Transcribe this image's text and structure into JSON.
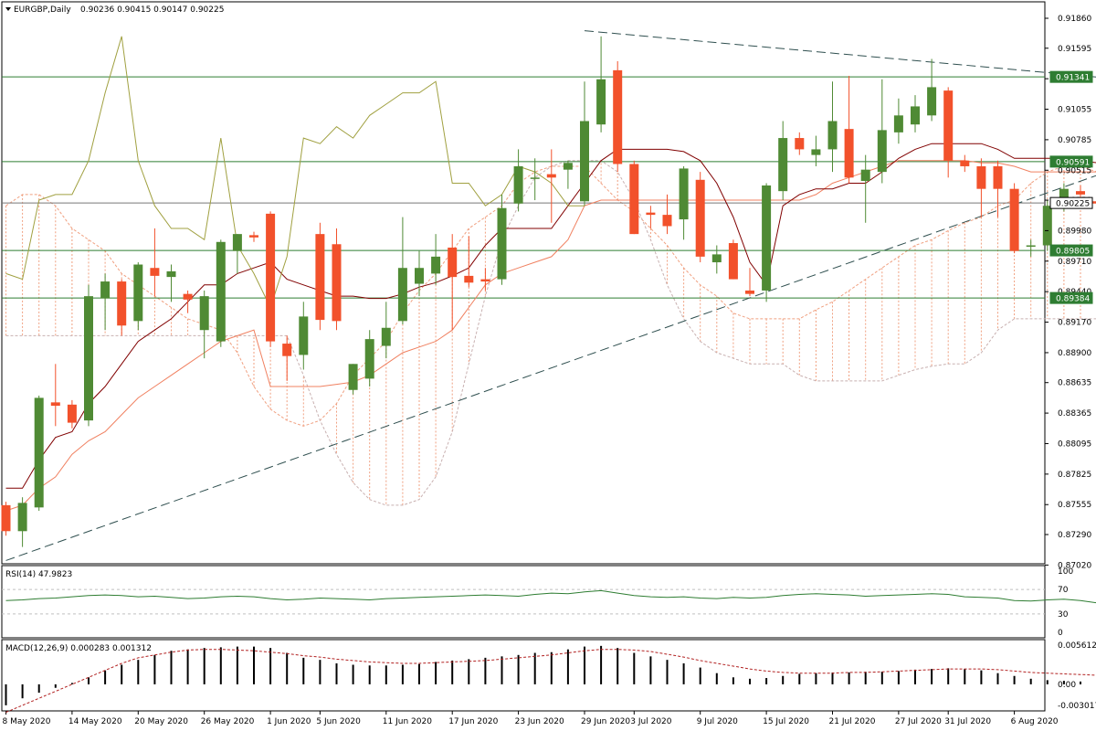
{
  "header": {
    "symbol": "EURGBP,Daily",
    "ohlc": "0.90236 0.90415 0.90147 0.90225"
  },
  "rsi": {
    "label": "RSI(14) 47.9823",
    "ticks": [
      "100",
      "70",
      "30",
      "0"
    ],
    "levels": [
      70,
      30
    ]
  },
  "macd": {
    "label": "MACD(12,26,9) 0.000283 0.001312",
    "ticks": [
      "0.005612",
      "0.00",
      "-0.003017"
    ]
  },
  "colors": {
    "bull": "#4f8a34",
    "bear": "#f2512b",
    "tenkan": "#800000",
    "kijun": "#f08060",
    "chikou": "#a0a040",
    "cloud": "#f0a080",
    "trend": "#2f4f4f",
    "level": "#2e7d32",
    "label_bg": "#2e7d32",
    "current_bg": "#ffffff",
    "rsi_line": "#2e7d32",
    "signal": "#b22222"
  },
  "chart_data": {
    "type": "candlestick",
    "symbol": "EURGBP",
    "timeframe": "Daily",
    "y_ticks": [
      "0.91860",
      "0.91595",
      "0.91325",
      "0.91055",
      "0.90785",
      "0.90515",
      "0.90250",
      "0.89980",
      "0.89710",
      "0.89440",
      "0.89170",
      "0.88900",
      "0.88635",
      "0.88365",
      "0.88095",
      "0.87825",
      "0.87555",
      "0.87290",
      "0.87020"
    ],
    "ylim": [
      0.8702,
      0.9203
    ],
    "x_ticks": [
      "8 May 2020",
      "14 May 2020",
      "20 May 2020",
      "26 May 2020",
      "1 Jun 2020",
      "5 Jun 2020",
      "11 Jun 2020",
      "17 Jun 2020",
      "23 Jun 2020",
      "29 Jun 2020",
      "3 Jul 2020",
      "9 Jul 2020",
      "15 Jul 2020",
      "21 Jul 2020",
      "27 Jul 2020",
      "31 Jul 2020",
      "6 Aug 2020"
    ],
    "x_tick_index": [
      0,
      4,
      8,
      12,
      16,
      19,
      23,
      27,
      31,
      35,
      38,
      42,
      46,
      50,
      54,
      57,
      61
    ],
    "h_levels": [
      {
        "value": "0.91341",
        "price": 0.91341
      },
      {
        "value": "0.90591",
        "price": 0.90591
      },
      {
        "value": "0.90225",
        "price": 0.90225,
        "current": true
      },
      {
        "value": "0.89805",
        "price": 0.89805
      },
      {
        "value": "0.89384",
        "price": 0.89384
      }
    ],
    "candles": [
      [
        0.8755,
        0.8758,
        0.8728,
        0.8732
      ],
      [
        0.8732,
        0.8762,
        0.8718,
        0.8757
      ],
      [
        0.8753,
        0.8852,
        0.875,
        0.885
      ],
      [
        0.8846,
        0.888,
        0.8825,
        0.8843
      ],
      [
        0.8844,
        0.8848,
        0.8823,
        0.8828
      ],
      [
        0.883,
        0.895,
        0.8825,
        0.894
      ],
      [
        0.8938,
        0.896,
        0.891,
        0.8953
      ],
      [
        0.8953,
        0.8955,
        0.8905,
        0.8914
      ],
      [
        0.8918,
        0.897,
        0.891,
        0.8968
      ],
      [
        0.8965,
        0.9,
        0.894,
        0.8958
      ],
      [
        0.8957,
        0.8968,
        0.8935,
        0.8962
      ],
      [
        0.8942,
        0.8945,
        0.8925,
        0.8937
      ],
      [
        0.891,
        0.8945,
        0.8885,
        0.894
      ],
      [
        0.89,
        0.899,
        0.8895,
        0.8988
      ],
      [
        0.898,
        0.8995,
        0.896,
        0.8995
      ],
      [
        0.8994,
        0.8997,
        0.8988,
        0.8992
      ],
      [
        0.9013,
        0.9015,
        0.8895,
        0.89
      ],
      [
        0.8898,
        0.8905,
        0.8865,
        0.8887
      ],
      [
        0.8888,
        0.8935,
        0.8875,
        0.8922
      ],
      [
        0.8995,
        0.9005,
        0.891,
        0.8919
      ],
      [
        0.8986,
        0.9,
        0.891,
        0.8918
      ],
      [
        0.8857,
        0.888,
        0.8853,
        0.888
      ],
      [
        0.8867,
        0.891,
        0.886,
        0.8902
      ],
      [
        0.8896,
        0.8935,
        0.8885,
        0.8912
      ],
      [
        0.8918,
        0.901,
        0.8915,
        0.8965
      ],
      [
        0.8951,
        0.898,
        0.894,
        0.8965
      ],
      [
        0.896,
        0.8995,
        0.895,
        0.8975
      ],
      [
        0.8983,
        0.8995,
        0.891,
        0.8957
      ],
      [
        0.8958,
        0.8993,
        0.8948,
        0.8952
      ],
      [
        0.8955,
        0.8965,
        0.8945,
        0.8953
      ],
      [
        0.8955,
        0.903,
        0.895,
        0.9018
      ],
      [
        0.9022,
        0.907,
        0.9015,
        0.9055
      ],
      [
        0.9045,
        0.9062,
        0.9025,
        0.9045
      ],
      [
        0.9048,
        0.907,
        0.9005,
        0.9045
      ],
      [
        0.9052,
        0.906,
        0.9035,
        0.9058
      ],
      [
        0.9024,
        0.913,
        0.902,
        0.9095
      ],
      [
        0.9092,
        0.917,
        0.9085,
        0.9132
      ],
      [
        0.914,
        0.9148,
        0.905,
        0.9057
      ],
      [
        0.9057,
        0.906,
        0.8995,
        0.8995
      ],
      [
        0.9014,
        0.902,
        0.9,
        0.9012
      ],
      [
        0.9012,
        0.903,
        0.8995,
        0.9002
      ],
      [
        0.9008,
        0.9055,
        0.899,
        0.9053
      ],
      [
        0.9043,
        0.905,
        0.897,
        0.8975
      ],
      [
        0.897,
        0.8985,
        0.896,
        0.8977
      ],
      [
        0.8987,
        0.899,
        0.8955,
        0.8955
      ],
      [
        0.8945,
        0.8965,
        0.894,
        0.8942
      ],
      [
        0.8945,
        0.904,
        0.8935,
        0.9038
      ],
      [
        0.9033,
        0.9095,
        0.9025,
        0.908
      ],
      [
        0.908,
        0.9085,
        0.9065,
        0.907
      ],
      [
        0.9065,
        0.9082,
        0.9055,
        0.907
      ],
      [
        0.907,
        0.913,
        0.905,
        0.9095
      ],
      [
        0.9088,
        0.9135,
        0.904,
        0.9045
      ],
      [
        0.9042,
        0.9065,
        0.9005,
        0.9052
      ],
      [
        0.905,
        0.9132,
        0.904,
        0.9087
      ],
      [
        0.9085,
        0.9115,
        0.9075,
        0.91
      ],
      [
        0.9092,
        0.9118,
        0.9085,
        0.9108
      ],
      [
        0.91,
        0.915,
        0.9095,
        0.9125
      ],
      [
        0.9122,
        0.9125,
        0.9045,
        0.906
      ],
      [
        0.906,
        0.9065,
        0.905,
        0.9055
      ],
      [
        0.9055,
        0.9062,
        0.901,
        0.9035
      ],
      [
        0.9055,
        0.906,
        0.901,
        0.9035
      ],
      [
        0.9035,
        0.904,
        0.8978,
        0.898
      ],
      [
        0.8985,
        0.899,
        0.8975,
        0.8985
      ],
      [
        0.8985,
        0.9025,
        0.898,
        0.902
      ],
      [
        0.902,
        0.904,
        0.9015,
        0.9035
      ],
      [
        0.9033,
        0.9038,
        0.9028,
        0.903
      ],
      [
        0.9024,
        0.9042,
        0.9015,
        0.9022
      ]
    ],
    "tenkan": [
      0.877,
      0.877,
      0.8795,
      0.8815,
      0.882,
      0.8845,
      0.886,
      0.888,
      0.89,
      0.891,
      0.892,
      0.8935,
      0.895,
      0.895,
      0.896,
      0.8965,
      0.897,
      0.8955,
      0.895,
      0.8945,
      0.894,
      0.894,
      0.8938,
      0.8938,
      0.8942,
      0.8948,
      0.8952,
      0.8958,
      0.8965,
      0.8985,
      0.9,
      0.9,
      0.9,
      0.9,
      0.902,
      0.904,
      0.906,
      0.907,
      0.907,
      0.907,
      0.907,
      0.9068,
      0.906,
      0.904,
      0.901,
      0.897,
      0.895,
      0.902,
      0.903,
      0.9035,
      0.9035,
      0.904,
      0.904,
      0.905,
      0.9062,
      0.907,
      0.9075,
      0.9075,
      0.9075,
      0.9075,
      0.907,
      0.9062,
      0.9062,
      0.9062,
      0.9062,
      0.906,
      0.9058
    ],
    "kijun": [
      0.875,
      0.8755,
      0.877,
      0.878,
      0.88,
      0.8812,
      0.882,
      0.8835,
      0.885,
      0.886,
      0.887,
      0.888,
      0.889,
      0.89,
      0.8905,
      0.891,
      0.886,
      0.886,
      0.886,
      0.886,
      0.8862,
      0.8864,
      0.887,
      0.888,
      0.889,
      0.8895,
      0.89,
      0.891,
      0.893,
      0.895,
      0.896,
      0.8965,
      0.897,
      0.8975,
      0.899,
      0.902,
      0.9025,
      0.9025,
      0.9025,
      0.9025,
      0.9025,
      0.9025,
      0.9025,
      0.9025,
      0.9025,
      0.9025,
      0.9025,
      0.9025,
      0.9025,
      0.903,
      0.904,
      0.9045,
      0.905,
      0.9055,
      0.906,
      0.906,
      0.906,
      0.906,
      0.906,
      0.9058,
      0.9058,
      0.9055,
      0.905,
      0.905,
      0.905,
      0.905,
      0.905
    ],
    "chikou": [
      0.896,
      0.8955,
      0.9025,
      0.903,
      0.903,
      0.906,
      0.912,
      0.917,
      0.906,
      0.902,
      0.9,
      0.9,
      0.899,
      0.908,
      0.8985,
      0.896,
      0.893,
      0.8975,
      0.908,
      0.9075,
      0.909,
      0.908,
      0.91,
      0.911,
      0.912,
      0.912,
      0.913,
      0.904,
      0.904,
      0.902,
      0.903,
      0.9055,
      0.905,
      0.904,
      0.902,
      0.902
    ],
    "span_a": [
      0.902,
      0.903,
      0.903,
      0.902,
      0.9,
      0.899,
      0.898,
      0.896,
      0.895,
      0.894,
      0.893,
      0.892,
      0.8915,
      0.891,
      0.889,
      0.886,
      0.884,
      0.883,
      0.8825,
      0.883,
      0.8845,
      0.887,
      0.8885,
      0.89,
      0.8925,
      0.8945,
      0.896,
      0.898,
      0.9,
      0.901,
      0.902,
      0.904,
      0.905,
      0.9055,
      0.9055,
      0.9055,
      0.904,
      0.9025,
      0.9015,
      0.9,
      0.8985,
      0.8965,
      0.895,
      0.894,
      0.8925,
      0.892,
      0.892,
      0.892,
      0.892,
      0.8928,
      0.8935,
      0.8945,
      0.8955,
      0.8965,
      0.8975,
      0.8985,
      0.899,
      0.8998,
      0.9005,
      0.901,
      0.902,
      0.9025,
      0.904,
      0.905,
      0.9055,
      0.9055,
      0.905,
      0.9048,
      0.9045,
      0.904,
      0.9035,
      0.9032,
      0.9025
    ],
    "span_b": [
      0.8905,
      0.8905,
      0.8905,
      0.8905,
      0.8905,
      0.8905,
      0.8905,
      0.8905,
      0.8905,
      0.8905,
      0.8905,
      0.8905,
      0.8905,
      0.8905,
      0.8905,
      0.8905,
      0.8905,
      0.8905,
      0.887,
      0.883,
      0.88,
      0.8775,
      0.876,
      0.8755,
      0.8755,
      0.876,
      0.878,
      0.882,
      0.888,
      0.894,
      0.899,
      0.902,
      0.9045,
      0.9055,
      0.906,
      0.906,
      0.906,
      0.905,
      0.9025,
      0.899,
      0.895,
      0.892,
      0.89,
      0.889,
      0.8885,
      0.888,
      0.888,
      0.888,
      0.887,
      0.8865,
      0.8865,
      0.8865,
      0.8865,
      0.8865,
      0.887,
      0.8875,
      0.8878,
      0.888,
      0.888,
      0.889,
      0.891,
      0.892,
      0.892,
      0.892,
      0.892,
      0.892,
      0.892,
      0.892,
      0.892,
      0.892,
      0.892,
      0.892,
      0.892
    ],
    "trendlines": [
      {
        "from": [
          0,
          0.8706
        ],
        "to": [
          72,
          0.9078
        ],
        "style": "dashed"
      },
      {
        "from": [
          35,
          0.9175
        ],
        "to": [
          72,
          0.9126
        ],
        "style": "dashed"
      }
    ],
    "rsi_values": [
      52,
      53,
      55,
      56,
      58,
      60,
      61,
      60,
      58,
      59,
      57,
      55,
      56,
      58,
      59,
      58,
      55,
      53,
      54,
      56,
      55,
      54,
      53,
      55,
      56,
      57,
      58,
      59,
      60,
      61,
      60,
      59,
      62,
      64,
      63,
      66,
      68,
      64,
      60,
      58,
      57,
      58,
      56,
      55,
      57,
      56,
      57,
      60,
      62,
      63,
      62,
      61,
      59,
      60,
      61,
      62,
      63,
      62,
      58,
      57,
      56,
      52,
      51,
      53,
      54,
      52,
      48
    ],
    "macd_values": [
      -0.003,
      -0.002,
      -0.0012,
      -0.0005,
      0.0002,
      0.001,
      0.002,
      0.0028,
      0.0035,
      0.0042,
      0.0048,
      0.005,
      0.0052,
      0.0053,
      0.0054,
      0.0054,
      0.0052,
      0.0045,
      0.0038,
      0.0035,
      0.003,
      0.0028,
      0.0027,
      0.0027,
      0.0028,
      0.0029,
      0.0032,
      0.0034,
      0.0036,
      0.0038,
      0.004,
      0.0042,
      0.0045,
      0.0046,
      0.005,
      0.0054,
      0.0055,
      0.0052,
      0.0045,
      0.004,
      0.0035,
      0.003,
      0.0024,
      0.0016,
      0.001,
      0.0008,
      0.0009,
      0.0012,
      0.0015,
      0.0016,
      0.0017,
      0.0017,
      0.0018,
      0.0018,
      0.0019,
      0.0021,
      0.0022,
      0.0023,
      0.0022,
      0.002,
      0.0016,
      0.0012,
      0.0008,
      0.0006,
      0.0005,
      0.0004,
      0.0003
    ],
    "macd_signal": [
      -0.004,
      -0.003,
      -0.002,
      -0.001,
      0.0,
      0.001,
      0.002,
      0.003,
      0.0038,
      0.0042,
      0.0046,
      0.0049,
      0.005,
      0.005,
      0.0049,
      0.0048,
      0.0046,
      0.0044,
      0.0041,
      0.0039,
      0.0036,
      0.0034,
      0.0032,
      0.0031,
      0.003,
      0.003,
      0.0031,
      0.0032,
      0.0033,
      0.0034,
      0.0036,
      0.0038,
      0.004,
      0.0042,
      0.0045,
      0.0048,
      0.005,
      0.005,
      0.0049,
      0.0047,
      0.0043,
      0.0039,
      0.0034,
      0.003,
      0.0026,
      0.0022,
      0.0019,
      0.0017,
      0.0016,
      0.0016,
      0.0016,
      0.0017,
      0.0017,
      0.0018,
      0.0019,
      0.002,
      0.0021,
      0.0022,
      0.0022,
      0.0022,
      0.0021,
      0.0019,
      0.0017,
      0.0016,
      0.0015,
      0.0014,
      0.0013
    ]
  }
}
